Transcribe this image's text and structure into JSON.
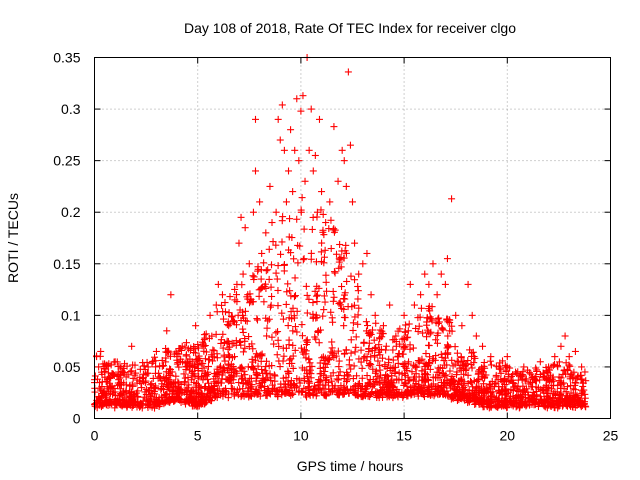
{
  "chart_data": {
    "type": "scatter",
    "title": "Day 108 of 2018, Rate Of TEC Index for receiver clgo",
    "xlabel": "GPS time / hours",
    "ylabel": "ROTI / TECUs",
    "xlim": [
      0,
      25
    ],
    "ylim": [
      0,
      0.35
    ],
    "x_ticks": [
      0,
      5,
      10,
      15,
      20,
      25
    ],
    "x_tick_labels": [
      "0",
      "5",
      "10",
      "15",
      "20",
      "25"
    ],
    "y_ticks": [
      0,
      0.05,
      0.1,
      0.15,
      0.2,
      0.25,
      0.3,
      0.35
    ],
    "y_tick_labels": [
      "0",
      "0.05",
      "0.1",
      "0.15",
      "0.2",
      "0.25",
      "0.3",
      "0.35"
    ],
    "grid": true,
    "marker": "+",
    "marker_color": "#ff0000",
    "series": [
      {
        "name": "ROTI",
        "points": [
          [
            0.1,
            0.06
          ],
          [
            0.2,
            0.05
          ],
          [
            0.3,
            0.065
          ],
          [
            0.5,
            0.04
          ],
          [
            0.8,
            0.03
          ],
          [
            1.0,
            0.055
          ],
          [
            1.3,
            0.035
          ],
          [
            1.8,
            0.07
          ],
          [
            2.2,
            0.04
          ],
          [
            2.6,
            0.05
          ],
          [
            3.0,
            0.065
          ],
          [
            3.5,
            0.085
          ],
          [
            3.7,
            0.12
          ],
          [
            4.0,
            0.06
          ],
          [
            4.5,
            0.05
          ],
          [
            4.9,
            0.09
          ],
          [
            5.3,
            0.07
          ],
          [
            5.6,
            0.1
          ],
          [
            5.9,
            0.11
          ],
          [
            6.0,
            0.13
          ],
          [
            6.2,
            0.12
          ],
          [
            6.5,
            0.09
          ],
          [
            6.8,
            0.115
          ],
          [
            6.9,
            0.13
          ],
          [
            7.0,
            0.17
          ],
          [
            7.1,
            0.195
          ],
          [
            7.2,
            0.14
          ],
          [
            7.3,
            0.185
          ],
          [
            7.5,
            0.15
          ],
          [
            7.7,
            0.2
          ],
          [
            7.8,
            0.24
          ],
          [
            7.8,
            0.29
          ],
          [
            8.0,
            0.21
          ],
          [
            8.1,
            0.16
          ],
          [
            8.3,
            0.18
          ],
          [
            8.5,
            0.225
          ],
          [
            8.6,
            0.19
          ],
          [
            8.8,
            0.2
          ],
          [
            8.9,
            0.29
          ],
          [
            9.0,
            0.27
          ],
          [
            9.1,
            0.304
          ],
          [
            9.2,
            0.26
          ],
          [
            9.3,
            0.21
          ],
          [
            9.4,
            0.24
          ],
          [
            9.5,
            0.28
          ],
          [
            9.6,
            0.22
          ],
          [
            9.7,
            0.26
          ],
          [
            9.8,
            0.31
          ],
          [
            9.9,
            0.25
          ],
          [
            10.0,
            0.298
          ],
          [
            10.1,
            0.313
          ],
          [
            10.2,
            0.23
          ],
          [
            10.3,
            0.35
          ],
          [
            10.4,
            0.26
          ],
          [
            10.5,
            0.3
          ],
          [
            10.6,
            0.24
          ],
          [
            10.7,
            0.255
          ],
          [
            10.8,
            0.2
          ],
          [
            10.9,
            0.29
          ],
          [
            11.0,
            0.22
          ],
          [
            11.2,
            0.19
          ],
          [
            11.4,
            0.21
          ],
          [
            11.6,
            0.283
          ],
          [
            11.8,
            0.23
          ],
          [
            12.0,
            0.26
          ],
          [
            12.1,
            0.25
          ],
          [
            12.2,
            0.225
          ],
          [
            12.3,
            0.336
          ],
          [
            12.4,
            0.265
          ],
          [
            12.5,
            0.21
          ],
          [
            12.6,
            0.17
          ],
          [
            12.8,
            0.14
          ],
          [
            13.0,
            0.15
          ],
          [
            13.2,
            0.16
          ],
          [
            13.4,
            0.12
          ],
          [
            13.6,
            0.1
          ],
          [
            14.0,
            0.09
          ],
          [
            14.3,
            0.11
          ],
          [
            14.6,
            0.08
          ],
          [
            15.0,
            0.1
          ],
          [
            15.3,
            0.13
          ],
          [
            15.5,
            0.11
          ],
          [
            15.8,
            0.12
          ],
          [
            16.0,
            0.14
          ],
          [
            16.2,
            0.13
          ],
          [
            16.4,
            0.15
          ],
          [
            16.6,
            0.12
          ],
          [
            16.8,
            0.14
          ],
          [
            17.0,
            0.13
          ],
          [
            17.1,
            0.155
          ],
          [
            17.3,
            0.213
          ],
          [
            17.5,
            0.1
          ],
          [
            17.8,
            0.09
          ],
          [
            18.1,
            0.13
          ],
          [
            18.3,
            0.1
          ],
          [
            18.5,
            0.08
          ],
          [
            18.8,
            0.07
          ],
          [
            19.2,
            0.06
          ],
          [
            19.6,
            0.05
          ],
          [
            20.0,
            0.06
          ],
          [
            20.4,
            0.045
          ],
          [
            20.8,
            0.05
          ],
          [
            21.2,
            0.04
          ],
          [
            21.6,
            0.055
          ],
          [
            22.0,
            0.05
          ],
          [
            22.3,
            0.06
          ],
          [
            22.6,
            0.07
          ],
          [
            22.8,
            0.08
          ],
          [
            23.0,
            0.06
          ],
          [
            23.3,
            0.065
          ],
          [
            23.6,
            0.05
          ]
        ],
        "band_ranges": [
          [
            0.0,
            0.06,
            0.01
          ],
          [
            1.0,
            0.05,
            0.01
          ],
          [
            2.0,
            0.05,
            0.01
          ],
          [
            3.0,
            0.06,
            0.01
          ],
          [
            4.0,
            0.07,
            0.015
          ],
          [
            5.0,
            0.07,
            0.01
          ],
          [
            6.0,
            0.1,
            0.02
          ],
          [
            7.0,
            0.13,
            0.02
          ],
          [
            8.0,
            0.15,
            0.02
          ],
          [
            9.0,
            0.19,
            0.02
          ],
          [
            10.0,
            0.21,
            0.02
          ],
          [
            11.0,
            0.2,
            0.02
          ],
          [
            12.0,
            0.18,
            0.02
          ],
          [
            13.0,
            0.11,
            0.02
          ],
          [
            14.0,
            0.08,
            0.02
          ],
          [
            15.0,
            0.09,
            0.02
          ],
          [
            16.0,
            0.11,
            0.02
          ],
          [
            17.0,
            0.1,
            0.02
          ],
          [
            18.0,
            0.07,
            0.015
          ],
          [
            19.0,
            0.05,
            0.01
          ],
          [
            20.0,
            0.05,
            0.01
          ],
          [
            21.0,
            0.045,
            0.01
          ],
          [
            22.0,
            0.05,
            0.01
          ],
          [
            23.0,
            0.05,
            0.01
          ],
          [
            23.8,
            0.04,
            0.01
          ]
        ]
      }
    ]
  }
}
